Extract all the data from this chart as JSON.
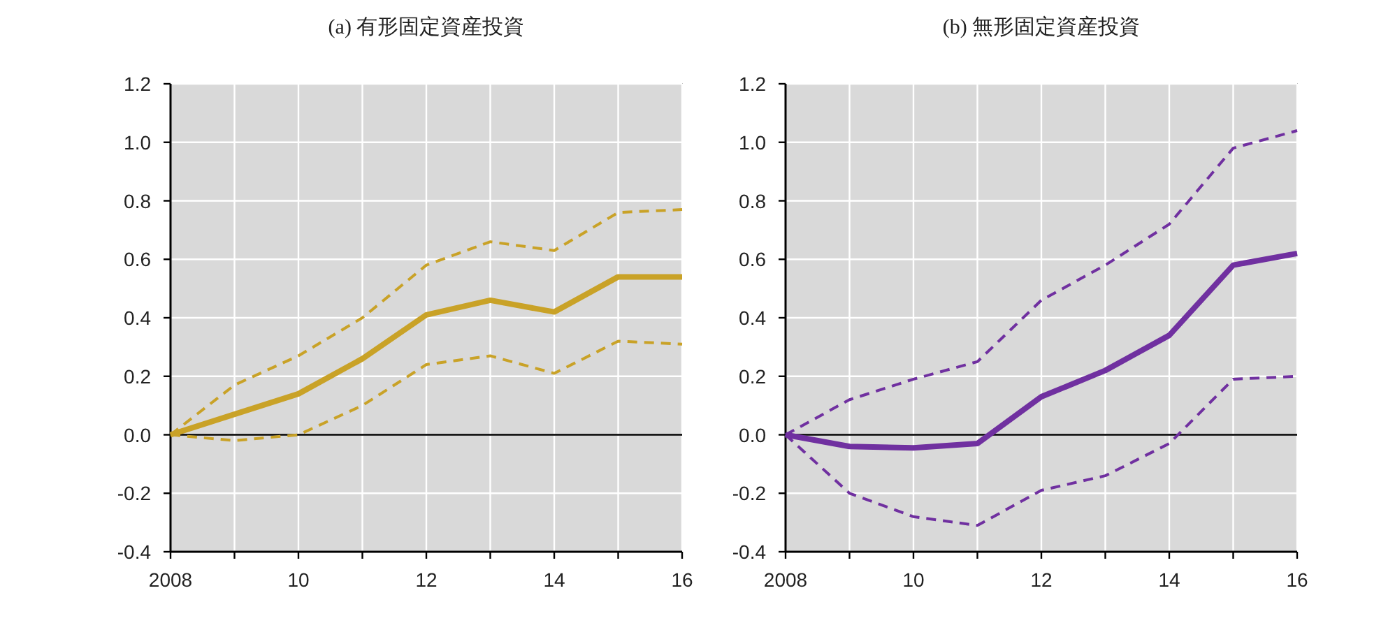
{
  "chart_data": [
    {
      "type": "line",
      "title": "(a) 有形固定資産投資",
      "x": [
        2008,
        2009,
        2010,
        2011,
        2012,
        2013,
        2014,
        2015,
        2016
      ],
      "series": [
        {
          "color": "#c9a227",
          "line_style": "solid",
          "values": [
            0,
            0.07,
            0.14,
            0.26,
            0.41,
            0.46,
            0.42,
            0.54,
            0.54
          ]
        },
        {
          "color": "#c9a227",
          "line_style": "dashed",
          "values": [
            0,
            0.17,
            0.27,
            0.4,
            0.58,
            0.66,
            0.63,
            0.76,
            0.77
          ]
        },
        {
          "color": "#c9a227",
          "line_style": "dashed",
          "values": [
            0,
            -0.02,
            0.0,
            0.1,
            0.24,
            0.27,
            0.21,
            0.32,
            0.31
          ]
        }
      ],
      "xlim": [
        2008,
        2016
      ],
      "ylim": [
        -0.4,
        1.2
      ],
      "xticks": [
        {
          "value": 2008,
          "label": "2008"
        },
        {
          "value": 2009,
          "label": null
        },
        {
          "value": 2010,
          "label": "10"
        },
        {
          "value": 2011,
          "label": null
        },
        {
          "value": 2012,
          "label": "12"
        },
        {
          "value": 2013,
          "label": null
        },
        {
          "value": 2014,
          "label": "14"
        },
        {
          "value": 2015,
          "label": null
        },
        {
          "value": 2016,
          "label": "16"
        }
      ],
      "yticks": [
        {
          "value": -0.4,
          "label": "-0.4"
        },
        {
          "value": -0.2,
          "label": "-0.2"
        },
        {
          "value": 0,
          "label": "0.0"
        },
        {
          "value": 0.2,
          "label": "0.2"
        },
        {
          "value": 0.4,
          "label": "0.4"
        },
        {
          "value": 0.6,
          "label": "0.6"
        },
        {
          "value": 0.8,
          "label": "0.8"
        },
        {
          "value": 1.0,
          "label": "1.0"
        },
        {
          "value": 1.2,
          "label": "1.2"
        }
      ],
      "grid": true,
      "ref_lines": [
        {
          "axis": "y",
          "value": 0,
          "color": "#000000"
        }
      ]
    },
    {
      "type": "line",
      "title": "(b) 無形固定資産投資",
      "x": [
        2008,
        2009,
        2010,
        2011,
        2012,
        2013,
        2014,
        2015,
        2016
      ],
      "series": [
        {
          "color": "#7030a0",
          "line_style": "solid",
          "values": [
            0,
            -0.04,
            -0.045,
            -0.03,
            0.13,
            0.22,
            0.34,
            0.58,
            0.62
          ]
        },
        {
          "color": "#7030a0",
          "line_style": "dashed",
          "values": [
            0,
            0.12,
            0.19,
            0.25,
            0.46,
            0.58,
            0.72,
            0.98,
            1.04
          ]
        },
        {
          "color": "#7030a0",
          "line_style": "dashed",
          "values": [
            0,
            -0.2,
            -0.28,
            -0.31,
            -0.19,
            -0.14,
            -0.03,
            0.19,
            0.2
          ]
        }
      ],
      "xlim": [
        2008,
        2016
      ],
      "ylim": [
        -0.4,
        1.2
      ],
      "xticks": [
        {
          "value": 2008,
          "label": "2008"
        },
        {
          "value": 2009,
          "label": null
        },
        {
          "value": 2010,
          "label": "10"
        },
        {
          "value": 2011,
          "label": null
        },
        {
          "value": 2012,
          "label": "12"
        },
        {
          "value": 2013,
          "label": null
        },
        {
          "value": 2014,
          "label": "14"
        },
        {
          "value": 2015,
          "label": null
        },
        {
          "value": 2016,
          "label": "16"
        }
      ],
      "yticks": [
        {
          "value": -0.4,
          "label": "-0.4"
        },
        {
          "value": -0.2,
          "label": "-0.2"
        },
        {
          "value": 0,
          "label": "0.0"
        },
        {
          "value": 0.2,
          "label": "0.2"
        },
        {
          "value": 0.4,
          "label": "0.4"
        },
        {
          "value": 0.6,
          "label": "0.6"
        },
        {
          "value": 0.8,
          "label": "0.8"
        },
        {
          "value": 1.0,
          "label": "1.0"
        },
        {
          "value": 1.2,
          "label": "1.2"
        }
      ],
      "grid": true,
      "ref_lines": [
        {
          "axis": "y",
          "value": 0,
          "color": "#000000"
        }
      ]
    }
  ]
}
